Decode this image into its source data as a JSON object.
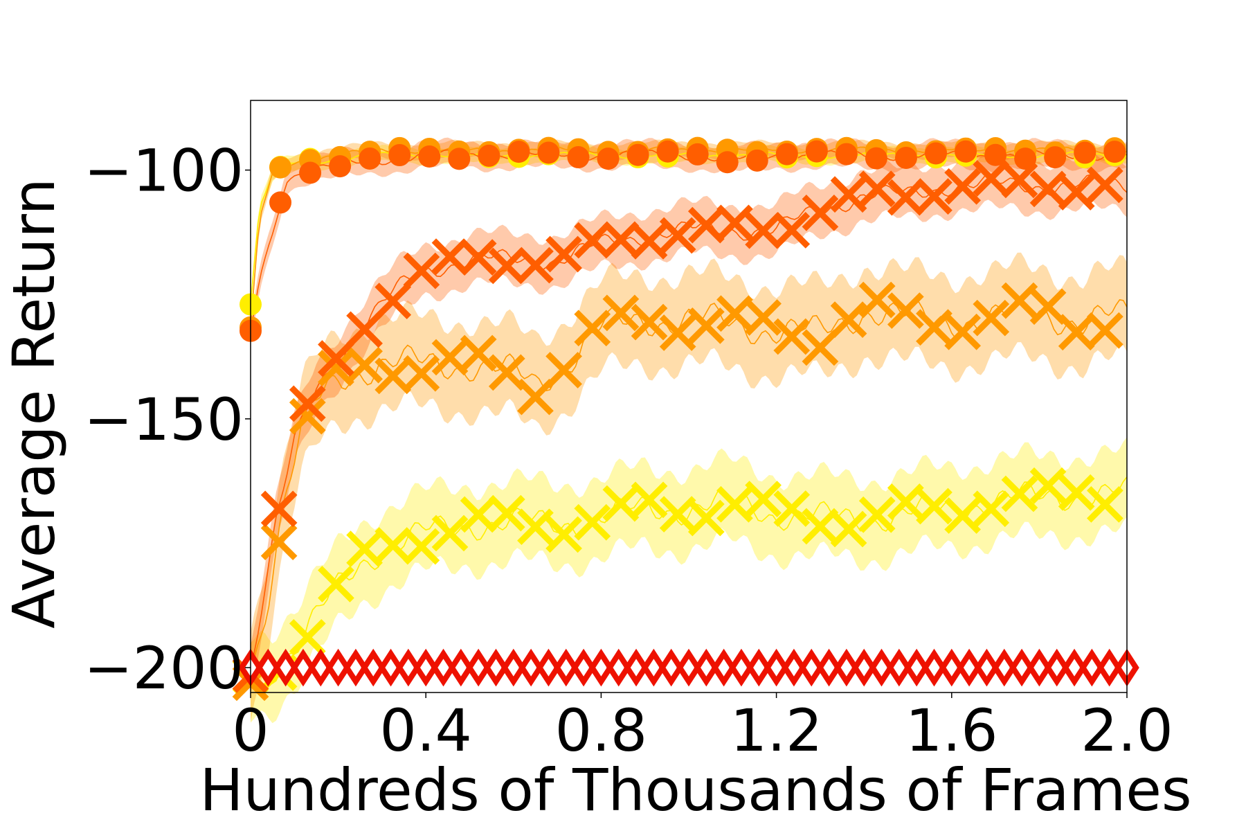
{
  "chart_data": {
    "type": "line",
    "title": "",
    "xlabel": "Hundreds of Thousands of Frames",
    "ylabel": "Average Return",
    "xlim": [
      0,
      2.0
    ],
    "ylim": [
      -205,
      -86
    ],
    "xticks": [
      0,
      0.4,
      0.8,
      1.2,
      1.6,
      2.0
    ],
    "xtick_labels": [
      "0",
      "0.4",
      "0.8",
      "1.2",
      "1.6",
      "2.0"
    ],
    "yticks": [
      -200,
      -150,
      -100
    ],
    "ytick_labels": [
      "−200",
      "−150",
      "−100"
    ],
    "grid": false,
    "legend": "none",
    "series": [
      {
        "color": "#ffee00",
        "marker": "circle",
        "x": [
          0,
          0.02,
          0.05,
          0.08,
          0.12,
          0.2,
          0.3,
          0.4,
          0.5,
          0.6,
          0.7,
          0.8,
          0.9,
          1.0,
          1.1,
          1.2,
          1.3,
          1.4,
          1.5,
          1.6,
          1.7,
          1.8,
          1.9,
          2.0
        ],
        "y": [
          -127,
          -108,
          -101,
          -99,
          -98,
          -98,
          -97,
          -97,
          -97,
          -97,
          -97,
          -97,
          -97,
          -97,
          -97,
          -97,
          -97,
          -97,
          -97,
          -97,
          -97,
          -97,
          -97,
          -97
        ],
        "band": 1.5
      },
      {
        "color": "#ff9900",
        "marker": "circle",
        "x": [
          0,
          0.02,
          0.05,
          0.08,
          0.12,
          0.2,
          0.3,
          0.4,
          0.5,
          0.6,
          0.7,
          0.8,
          0.9,
          1.0,
          1.1,
          1.2,
          1.3,
          1.4,
          1.5,
          1.6,
          1.7,
          1.8,
          1.9,
          2.0
        ],
        "y": [
          -132,
          -110,
          -101,
          -99,
          -98,
          -97,
          -96,
          -96,
          -96,
          -96,
          -96,
          -96,
          -96,
          -96,
          -96,
          -96,
          -96,
          -96,
          -96,
          -96,
          -96,
          -96,
          -96,
          -96
        ],
        "band": 1.5
      },
      {
        "color": "#ff5e00",
        "marker": "circle",
        "x": [
          0,
          0.02,
          0.05,
          0.08,
          0.12,
          0.2,
          0.3,
          0.4,
          0.5,
          0.6,
          0.7,
          0.8,
          0.9,
          1.0,
          1.1,
          1.2,
          1.3,
          1.4,
          1.5,
          1.6,
          1.7,
          1.8,
          1.9,
          2.0
        ],
        "y": [
          -133,
          -122,
          -113,
          -102,
          -100,
          -99,
          -98,
          -97,
          -97,
          -97,
          -97,
          -97,
          -97,
          -97,
          -98,
          -97,
          -97,
          -97,
          -97,
          -97,
          -97,
          -97,
          -97,
          -97
        ],
        "band": 2.5
      },
      {
        "color": "#ffee00",
        "marker": "x",
        "x": [
          0,
          0.05,
          0.1,
          0.15,
          0.2,
          0.25,
          0.3,
          0.4,
          0.5,
          0.6,
          0.7,
          0.8,
          0.9,
          1.0,
          1.1,
          1.2,
          1.3,
          1.4,
          1.5,
          1.6,
          1.7,
          1.8,
          1.9,
          2.0
        ],
        "y": [
          -202,
          -200,
          -196,
          -190,
          -184,
          -179,
          -176,
          -173,
          -171,
          -171,
          -171,
          -170,
          -168,
          -168,
          -167,
          -169,
          -170,
          -170,
          -169,
          -168,
          -166,
          -166,
          -165,
          -165
        ],
        "band": 8
      },
      {
        "color": "#ff9900",
        "marker": "x",
        "x": [
          0,
          0.04,
          0.08,
          0.12,
          0.15,
          0.2,
          0.25,
          0.3,
          0.4,
          0.5,
          0.6,
          0.65,
          0.7,
          0.8,
          0.9,
          1.0,
          1.1,
          1.2,
          1.3,
          1.4,
          1.5,
          1.6,
          1.7,
          1.8,
          1.9,
          2.0
        ],
        "y": [
          -201,
          -185,
          -165,
          -152,
          -147,
          -142,
          -140,
          -139,
          -139,
          -139,
          -141,
          -143,
          -140,
          -132,
          -130,
          -130,
          -131,
          -132,
          -133,
          -128,
          -130,
          -130,
          -130,
          -128,
          -131,
          -129
        ],
        "band": 9
      },
      {
        "color": "#ff5e00",
        "marker": "x",
        "x": [
          0,
          0.03,
          0.06,
          0.1,
          0.15,
          0.2,
          0.25,
          0.3,
          0.35,
          0.4,
          0.5,
          0.6,
          0.7,
          0.8,
          0.9,
          1.0,
          1.1,
          1.2,
          1.3,
          1.4,
          1.5,
          1.6,
          1.7,
          1.8,
          1.9,
          2.0
        ],
        "y": [
          -200,
          -185,
          -170,
          -155,
          -144,
          -138,
          -132,
          -127,
          -123,
          -120,
          -118,
          -118,
          -118,
          -115,
          -113,
          -112,
          -112,
          -112,
          -108,
          -105,
          -105,
          -103,
          -103,
          -103,
          -103,
          -103
        ],
        "band": 5
      },
      {
        "color": "#ee1100",
        "marker": "diamond",
        "x": [
          0,
          2.0
        ],
        "y": [
          -200,
          -200
        ],
        "band": 0.6
      }
    ]
  }
}
